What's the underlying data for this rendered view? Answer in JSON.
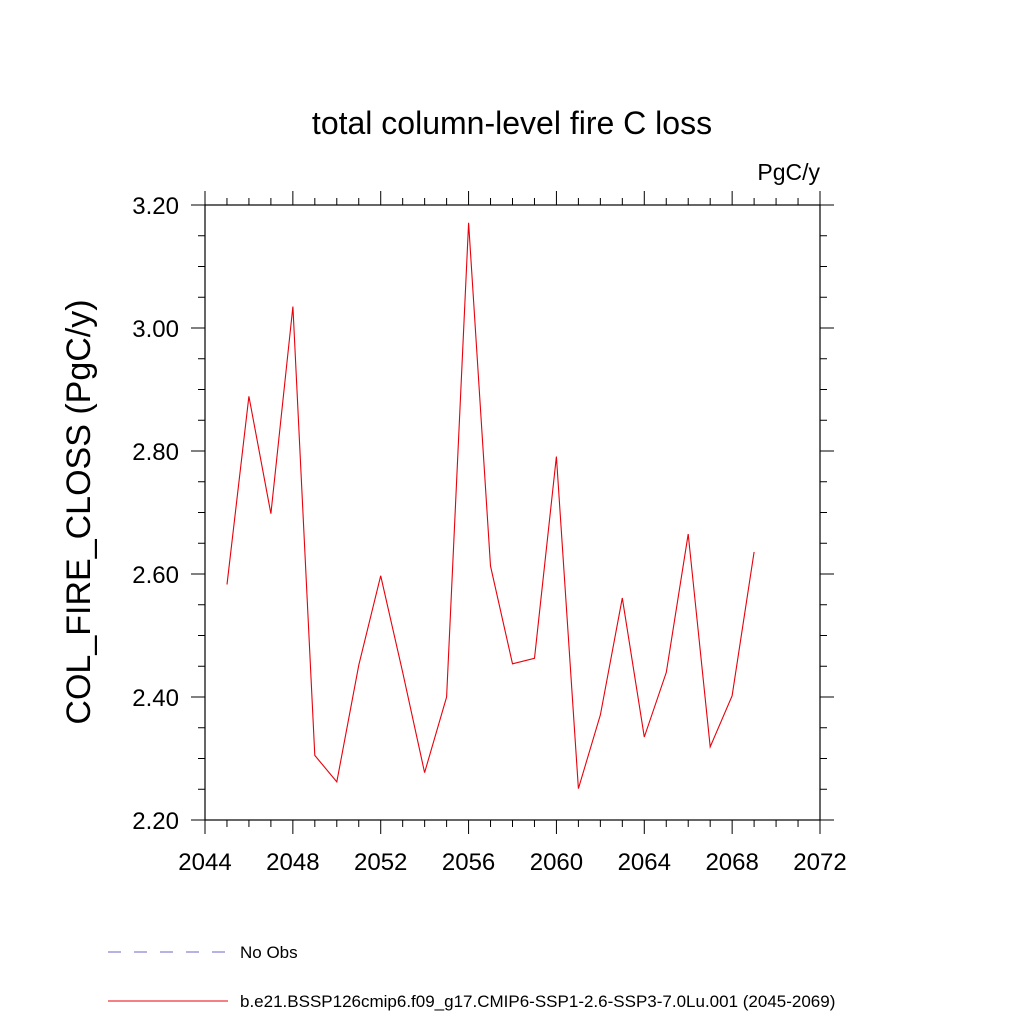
{
  "chart_data": {
    "type": "line",
    "title": "total column-level fire C loss",
    "units_label": "PgC/y",
    "ylabel": "COL_FIRE_CLOSS  (PgC/y)",
    "xlabel": "",
    "xlim": [
      2044,
      2072
    ],
    "ylim": [
      2.2,
      3.2
    ],
    "x_ticks": [
      "2044",
      "2048",
      "2052",
      "2056",
      "2060",
      "2064",
      "2068",
      "2072"
    ],
    "y_ticks": [
      "2.20",
      "2.40",
      "2.60",
      "2.80",
      "3.00",
      "3.20"
    ],
    "grid": false,
    "series": [
      {
        "name": "b.e21.BSSP126cmip6.f09_g17.CMIP6-SSP1-2.6-SSP3-7.0Lu.001 (2045-2069)",
        "color": "#e8000b",
        "style": "solid",
        "x": [
          2045,
          2046,
          2047,
          2048,
          2049,
          2050,
          2051,
          2052,
          2053,
          2054,
          2055,
          2056,
          2057,
          2058,
          2059,
          2060,
          2061,
          2062,
          2063,
          2064,
          2065,
          2066,
          2067,
          2068,
          2069
        ],
        "y": [
          2.583,
          2.889,
          2.698,
          3.035,
          2.305,
          2.262,
          2.452,
          2.597,
          2.44,
          2.277,
          2.4,
          3.171,
          2.613,
          2.454,
          2.463,
          2.791,
          2.251,
          2.371,
          2.561,
          2.335,
          2.44,
          2.665,
          2.319,
          2.402,
          2.636
        ]
      }
    ],
    "legend": [
      {
        "label": "No Obs",
        "color": "#6f65c8",
        "style": "dashed"
      },
      {
        "label": "b.e21.BSSP126cmip6.f09_g17.CMIP6-SSP1-2.6-SSP3-7.0Lu.001 (2045-2069)",
        "color": "#e8000b",
        "style": "solid"
      }
    ],
    "legend_placement": "bottom"
  }
}
